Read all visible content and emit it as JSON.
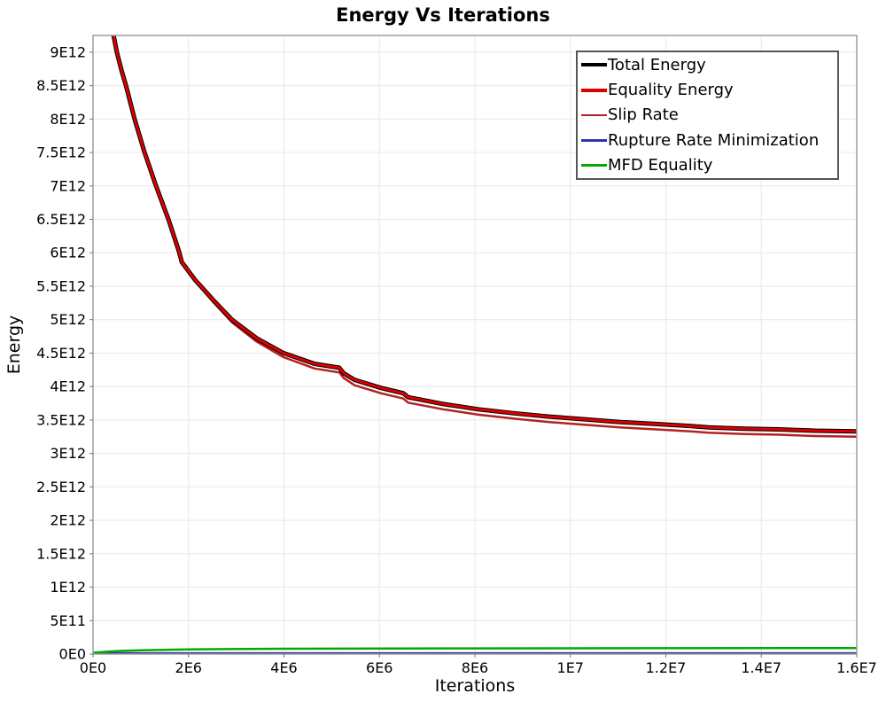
{
  "chart_data": {
    "type": "line",
    "title": "Energy Vs Iterations",
    "xlabel": "Iterations",
    "ylabel": "Energy",
    "xlim": [
      0,
      16000000
    ],
    "ylim": [
      0,
      9250000000000.0
    ],
    "grid": true,
    "legend_position": "top-right",
    "background_color": "#ffffff",
    "gridline_color": "#e8e8e8",
    "plot_border_color": "#9e9e9e",
    "x_ticks": [
      {
        "v": 0,
        "label": "0E0"
      },
      {
        "v": 2000000,
        "label": "2E6"
      },
      {
        "v": 4000000,
        "label": "4E6"
      },
      {
        "v": 6000000,
        "label": "6E6"
      },
      {
        "v": 8000000,
        "label": "8E6"
      },
      {
        "v": 10000000,
        "label": "1E7"
      },
      {
        "v": 12000000,
        "label": "1.2E7"
      },
      {
        "v": 14000000,
        "label": "1.4E7"
      },
      {
        "v": 16000000,
        "label": "1.6E7"
      }
    ],
    "y_ticks": [
      {
        "v": 0,
        "label": "0E0"
      },
      {
        "v": 500000000000.0,
        "label": "5E11"
      },
      {
        "v": 1000000000000.0,
        "label": "1E12"
      },
      {
        "v": 1500000000000.0,
        "label": "1.5E12"
      },
      {
        "v": 2000000000000.0,
        "label": "2E12"
      },
      {
        "v": 2500000000000.0,
        "label": "2.5E12"
      },
      {
        "v": 3000000000000.0,
        "label": "3E12"
      },
      {
        "v": 3500000000000.0,
        "label": "3.5E12"
      },
      {
        "v": 4000000000000.0,
        "label": "4E12"
      },
      {
        "v": 4500000000000.0,
        "label": "4.5E12"
      },
      {
        "v": 5000000000000.0,
        "label": "5E12"
      },
      {
        "v": 5500000000000.0,
        "label": "5.5E12"
      },
      {
        "v": 6000000000000.0,
        "label": "6E12"
      },
      {
        "v": 6500000000000.0,
        "label": "6.5E12"
      },
      {
        "v": 7000000000000.0,
        "label": "7E12"
      },
      {
        "v": 7500000000000.0,
        "label": "7.5E12"
      },
      {
        "v": 8000000000000.0,
        "label": "8E12"
      },
      {
        "v": 8500000000000.0,
        "label": "8.5E12"
      },
      {
        "v": 9000000000000.0,
        "label": "9E12"
      }
    ],
    "series": [
      {
        "name": "Total Energy",
        "color": "#000000",
        "width": 5,
        "x": [
          430000,
          500000,
          600000,
          690000,
          870000,
          1080000,
          1320000,
          1580000,
          1800000,
          1860000,
          2130000,
          2510000,
          2910000,
          3430000,
          3990000,
          4640000,
          5160000,
          5250000,
          5480000,
          6030000,
          6500000,
          6600000,
          7330000,
          8070000,
          8820000,
          9560000,
          10300000,
          11040000,
          11790000,
          12530000,
          12900000,
          13640000,
          14390000,
          15130000,
          16000000
        ],
        "y": [
          9250000000000.0,
          9000000000000.0,
          8720000000000.0,
          8500000000000.0,
          8000000000000.0,
          7500000000000.0,
          7000000000000.0,
          6500000000000.0,
          6020000000000.0,
          5860000000000.0,
          5600000000000.0,
          5300000000000.0,
          5000000000000.0,
          4720000000000.0,
          4500000000000.0,
          4340000000000.0,
          4280000000000.0,
          4200000000000.0,
          4100000000000.0,
          3980000000000.0,
          3900000000000.0,
          3840000000000.0,
          3740000000000.0,
          3660000000000.0,
          3600000000000.0,
          3550000000000.0,
          3510000000000.0,
          3470000000000.0,
          3440000000000.0,
          3410000000000.0,
          3390000000000.0,
          3370000000000.0,
          3360000000000.0,
          3340000000000.0,
          3330000000000.0
        ]
      },
      {
        "name": "Equality Energy",
        "color": "#dd0000",
        "width": 3,
        "x": [
          430000,
          500000,
          600000,
          690000,
          870000,
          1080000,
          1320000,
          1580000,
          1800000,
          1860000,
          2130000,
          2510000,
          2910000,
          3430000,
          3990000,
          4640000,
          5160000,
          5250000,
          5480000,
          6030000,
          6500000,
          6600000,
          7330000,
          8070000,
          8820000,
          9560000,
          10300000,
          11040000,
          11790000,
          12530000,
          12900000,
          13640000,
          14390000,
          15130000,
          16000000
        ],
        "y": [
          9250000000000.0,
          9000000000000.0,
          8720000000000.0,
          8500000000000.0,
          8000000000000.0,
          7500000000000.0,
          7000000000000.0,
          6500000000000.0,
          6020000000000.0,
          5860000000000.0,
          5600000000000.0,
          5300000000000.0,
          5000000000000.0,
          4720000000000.0,
          4500000000000.0,
          4340000000000.0,
          4280000000000.0,
          4200000000000.0,
          4100000000000.0,
          3980000000000.0,
          3900000000000.0,
          3840000000000.0,
          3740000000000.0,
          3660000000000.0,
          3600000000000.0,
          3550000000000.0,
          3510000000000.0,
          3470000000000.0,
          3440000000000.0,
          3410000000000.0,
          3390000000000.0,
          3370000000000.0,
          3360000000000.0,
          3340000000000.0,
          3330000000000.0
        ]
      },
      {
        "name": "Slip Rate",
        "color": "#b22222",
        "width": 2.5,
        "x": [
          430000,
          500000,
          600000,
          690000,
          870000,
          1080000,
          1320000,
          1580000,
          1800000,
          1860000,
          2130000,
          2510000,
          2910000,
          3430000,
          3990000,
          4640000,
          5160000,
          5250000,
          5480000,
          6030000,
          6500000,
          6600000,
          7330000,
          8070000,
          8820000,
          9560000,
          10300000,
          11040000,
          11790000,
          12530000,
          12900000,
          13640000,
          14390000,
          15130000,
          16000000
        ],
        "y": [
          9250000000000.0,
          9000000000000.0,
          8720000000000.0,
          8500000000000.0,
          8000000000000.0,
          7500000000000.0,
          7000000000000.0,
          6500000000000.0,
          6020000000000.0,
          5860000000000.0,
          5590000000000.0,
          5270000000000.0,
          4960000000000.0,
          4670000000000.0,
          4440000000000.0,
          4270000000000.0,
          4210000000000.0,
          4130000000000.0,
          4020000000000.0,
          3900000000000.0,
          3820000000000.0,
          3760000000000.0,
          3660000000000.0,
          3580000000000.0,
          3520000000000.0,
          3470000000000.0,
          3430000000000.0,
          3390000000000.0,
          3360000000000.0,
          3330000000000.0,
          3310000000000.0,
          3290000000000.0,
          3280000000000.0,
          3260000000000.0,
          3250000000000.0
        ]
      },
      {
        "name": "Rupture Rate Minimization",
        "color": "#3333aa",
        "width": 2,
        "x": [
          0,
          4000000,
          8000000,
          12000000,
          16000000
        ],
        "y": [
          15000000000.0,
          15000000000.0,
          15000000000.0,
          15000000000.0,
          15000000000.0
        ]
      },
      {
        "name": "MFD Equality",
        "color": "#00aa00",
        "width": 2.5,
        "x": [
          0,
          500000,
          1000000,
          2000000,
          4000000,
          8000000,
          12000000,
          16000000
        ],
        "y": [
          20000000000.0,
          45000000000.0,
          55000000000.0,
          70000000000.0,
          80000000000.0,
          85000000000.0,
          88000000000.0,
          90000000000.0
        ]
      }
    ]
  }
}
